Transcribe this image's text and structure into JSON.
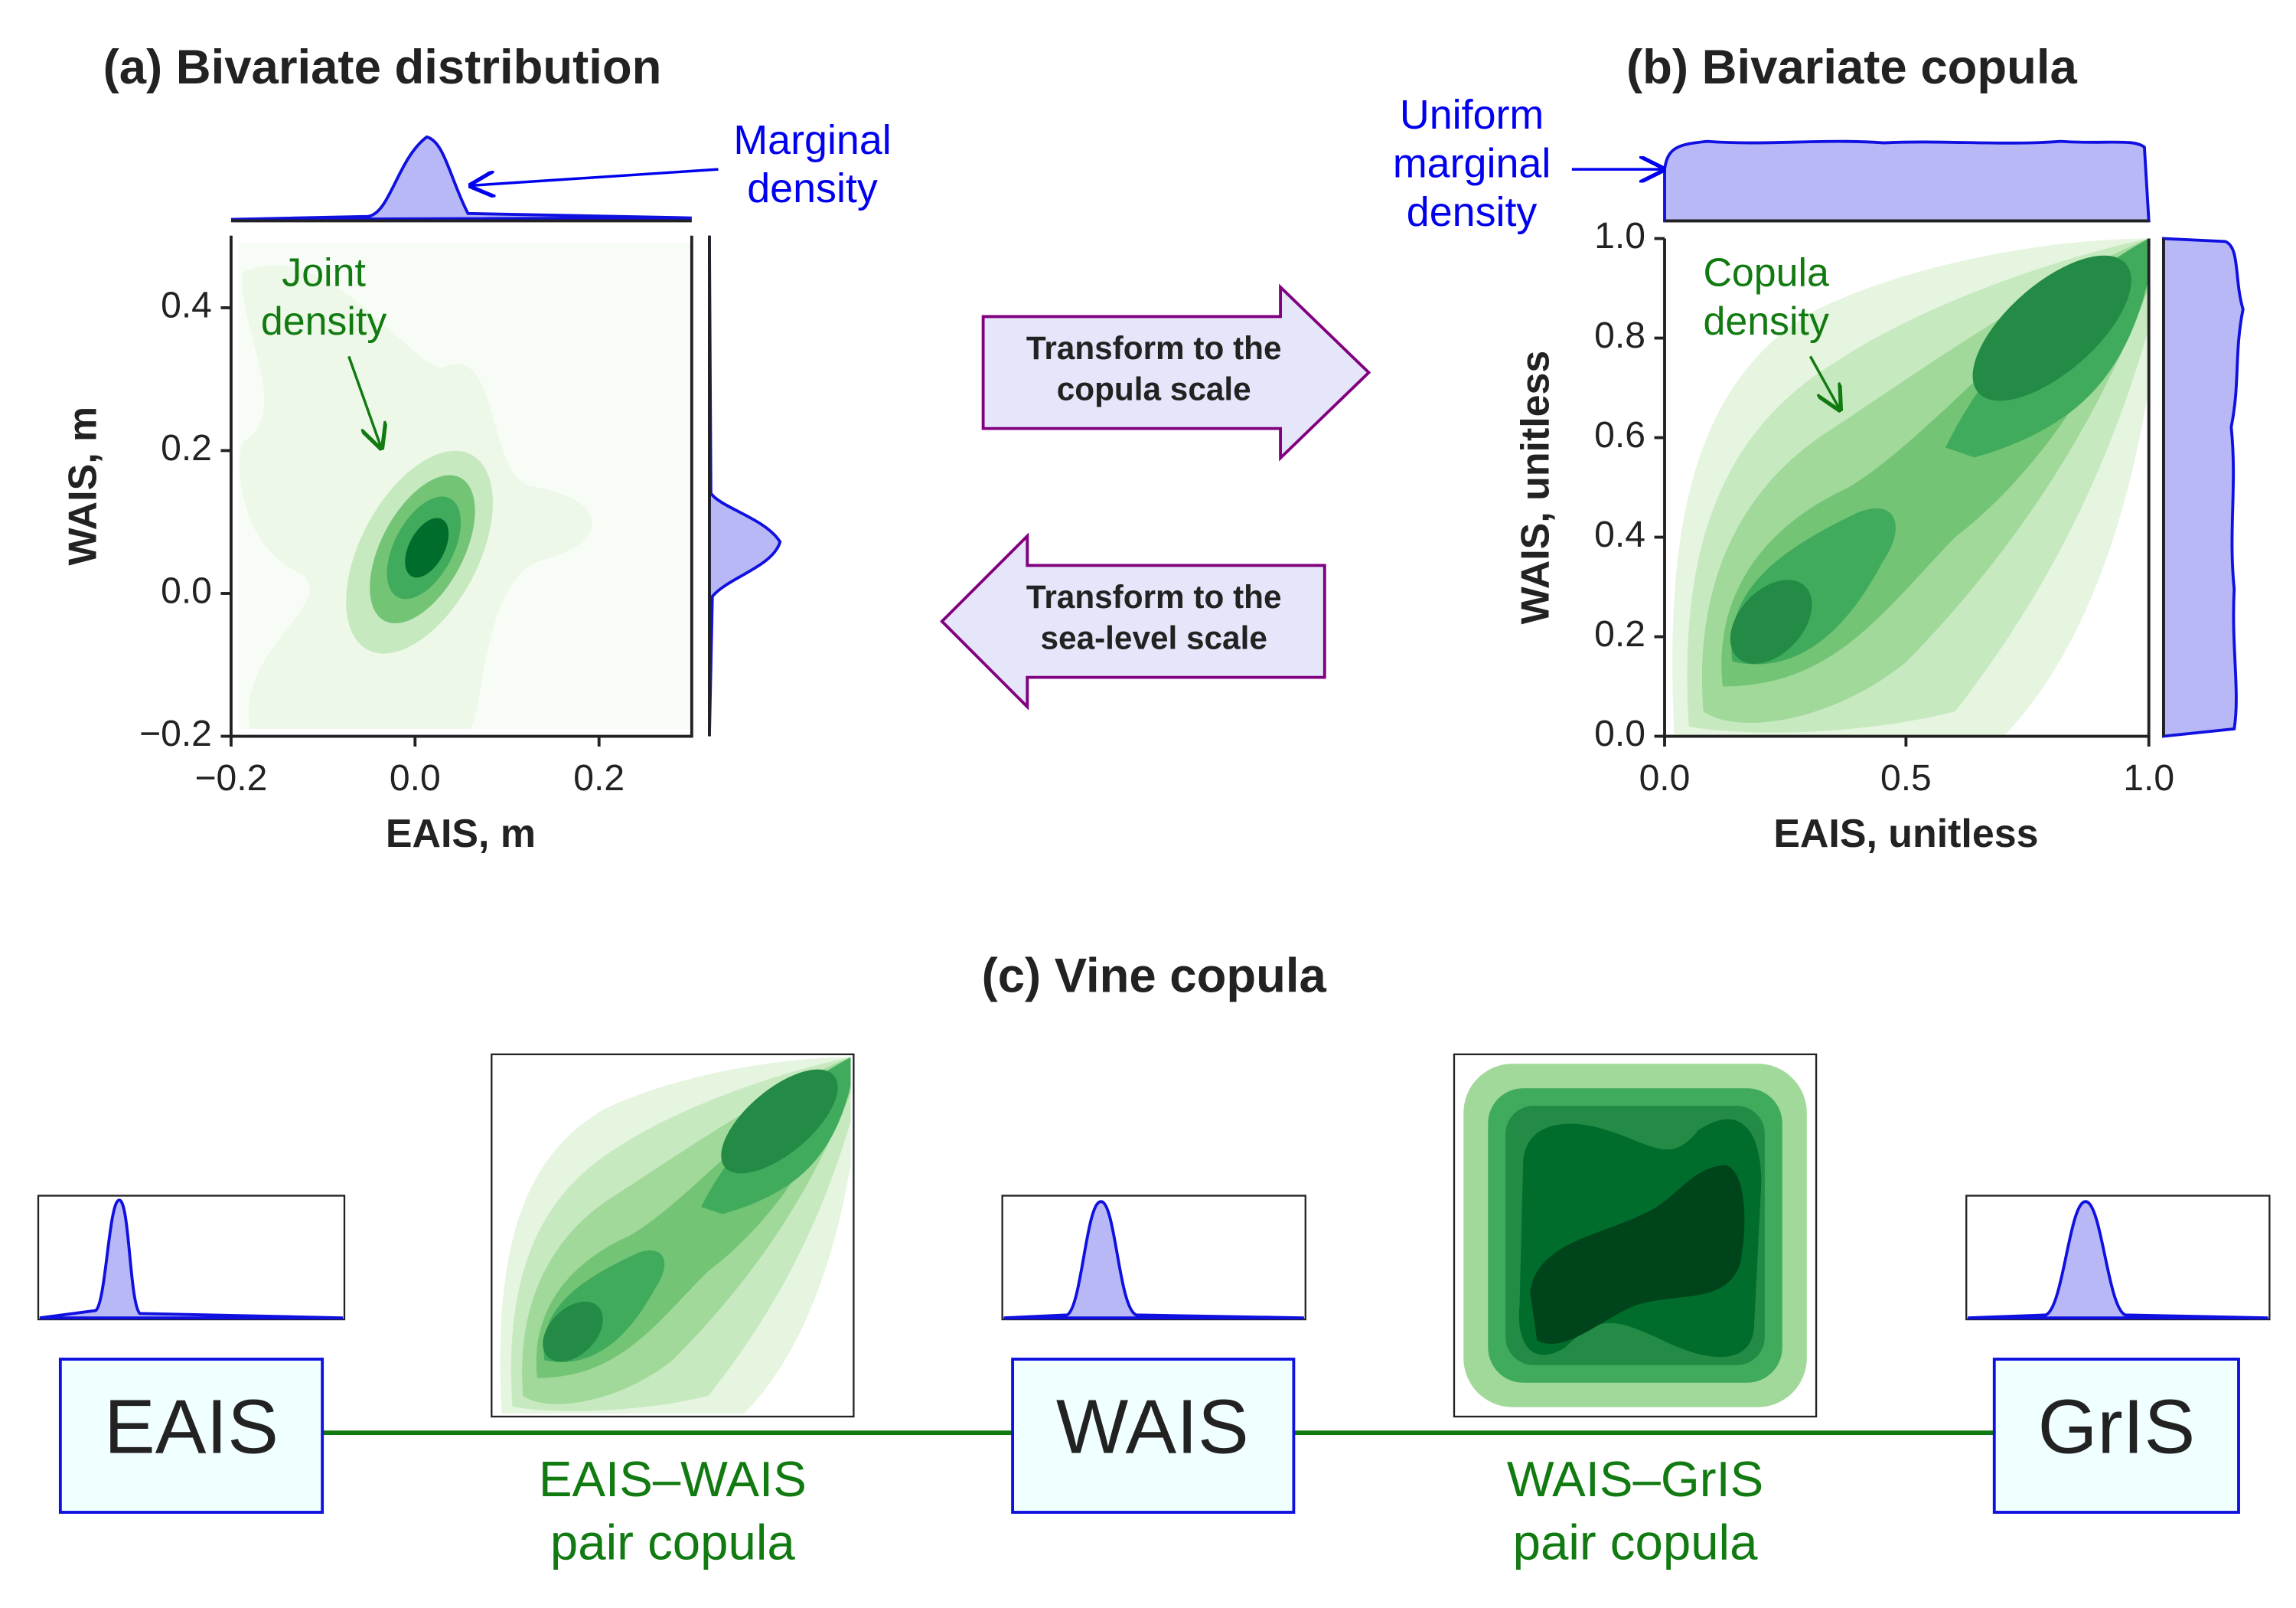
{
  "panel_a": {
    "title": "(a) Bivariate distribution",
    "x_label": "EAIS, m",
    "y_label": "WAIS, m",
    "x_ticks": [
      "−0.2",
      "0.0",
      "0.2"
    ],
    "y_ticks": [
      "−0.2",
      "0.0",
      "0.2",
      "0.4"
    ],
    "joint_note": [
      "Joint",
      "density"
    ],
    "marginal_note": [
      "Marginal",
      "density"
    ]
  },
  "arrows": {
    "forward": [
      "Transform to the",
      "copula scale"
    ],
    "backward": [
      "Transform to the",
      "sea-level scale"
    ]
  },
  "panel_b": {
    "title": "(b) Bivariate copula",
    "x_label": "EAIS, unitless",
    "y_label": "WAIS, unitless",
    "x_ticks": [
      "0.0",
      "0.5",
      "1.0"
    ],
    "y_ticks": [
      "0.0",
      "0.2",
      "0.4",
      "0.6",
      "0.8",
      "1.0"
    ],
    "uniform_note": [
      "Uniform",
      "marginal",
      "density"
    ],
    "copula_note": [
      "Copula",
      "density"
    ]
  },
  "panel_c": {
    "title": "(c) Vine copula",
    "nodes": [
      "EAIS",
      "WAIS",
      "GrIS"
    ],
    "pair_copulas": [
      [
        "EAIS–WAIS",
        "pair copula"
      ],
      [
        "WAIS–GrIS",
        "pair copula"
      ]
    ]
  }
}
